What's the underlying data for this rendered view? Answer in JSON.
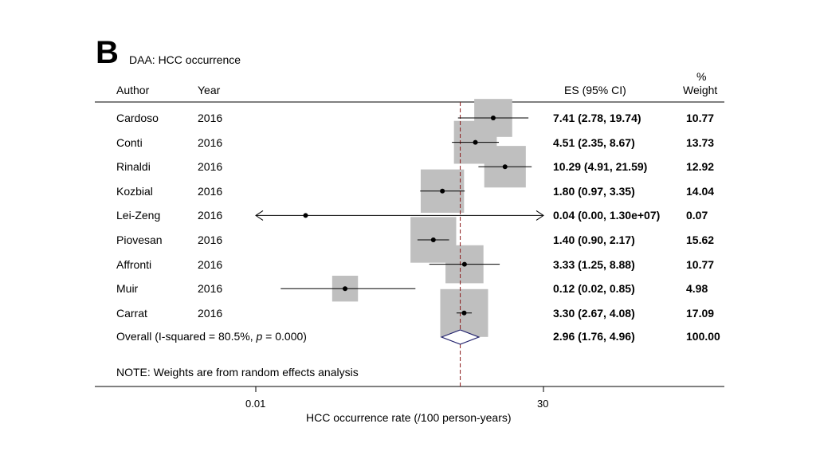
{
  "panel": {
    "letter": "B",
    "title": "DAA: HCC occurrence"
  },
  "headers": {
    "author": "Author",
    "year": "Year",
    "es": "ES (95% CI)",
    "weight_top": "%",
    "weight": "Weight"
  },
  "note": "NOTE: Weights are from random effects analysis",
  "chart_data": {
    "type": "forest",
    "xscale": "log",
    "xlabel": "HCC occurrence rate (/100 person-years)",
    "xticks": [
      0.01,
      30
    ],
    "xtick_labels": [
      "0.01",
      "30"
    ],
    "reference_line": 2.96,
    "studies": [
      {
        "author": "Cardoso",
        "year": "2016",
        "es": 7.41,
        "lo": 2.78,
        "hi": 19.74,
        "es_text": "7.41 (2.78, 19.74)",
        "weight": 10.77,
        "weight_text": "10.77"
      },
      {
        "author": "Conti",
        "year": "2016",
        "es": 4.51,
        "lo": 2.35,
        "hi": 8.67,
        "es_text": "4.51 (2.35, 8.67)",
        "weight": 13.73,
        "weight_text": "13.73"
      },
      {
        "author": "Rinaldi",
        "year": "2016",
        "es": 10.29,
        "lo": 4.91,
        "hi": 21.59,
        "es_text": "10.29 (4.91, 21.59)",
        "weight": 12.92,
        "weight_text": "12.92"
      },
      {
        "author": "Kozbial",
        "year": "2016",
        "es": 1.8,
        "lo": 0.97,
        "hi": 3.35,
        "es_text": "1.80 (0.97, 3.35)",
        "weight": 14.04,
        "weight_text": "14.04"
      },
      {
        "author": "Lei-Zeng",
        "year": "2016",
        "es": 0.04,
        "lo": 0.0,
        "hi": 13000000.0,
        "es_text": "0.04 (0.00, 1.30e+07)",
        "weight": 0.07,
        "weight_text": "0.07",
        "truncated_low": true,
        "truncated_high": true
      },
      {
        "author": "Piovesan",
        "year": "2016",
        "es": 1.4,
        "lo": 0.9,
        "hi": 2.17,
        "es_text": "1.40 (0.90, 2.17)",
        "weight": 15.62,
        "weight_text": "15.62"
      },
      {
        "author": "Affronti",
        "year": "2016",
        "es": 3.33,
        "lo": 1.25,
        "hi": 8.88,
        "es_text": "3.33 (1.25, 8.88)",
        "weight": 10.77,
        "weight_text": "10.77"
      },
      {
        "author": "Muir",
        "year": "2016",
        "es": 0.12,
        "lo": 0.02,
        "hi": 0.85,
        "es_text": "0.12 (0.02, 0.85)",
        "weight": 4.98,
        "weight_text": "4.98"
      },
      {
        "author": "Carrat",
        "year": "2016",
        "es": 3.3,
        "lo": 2.67,
        "hi": 4.08,
        "es_text": "3.30 (2.67, 4.08)",
        "weight": 17.09,
        "weight_text": "17.09"
      }
    ],
    "overall": {
      "label_prefix": "Overall  (I-squared = 80.5%, ",
      "label_p": "p",
      "label_suffix": " = 0.000)",
      "es": 2.96,
      "lo": 1.76,
      "hi": 4.96,
      "es_text": "2.96 (1.76, 4.96)",
      "weight_text": "100.00"
    },
    "colors": {
      "box": "#bfbfbf",
      "diamond": "#1f1f6b",
      "reference": "#8b1a1a",
      "line": "#000000"
    }
  }
}
